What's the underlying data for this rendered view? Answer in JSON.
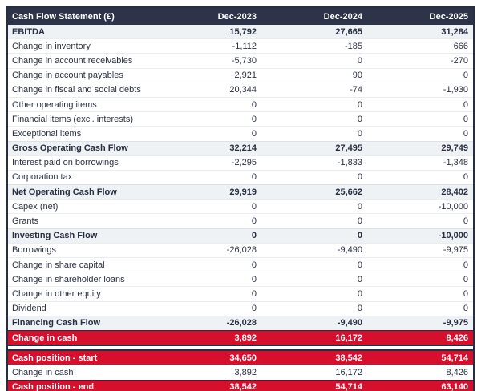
{
  "colors": {
    "header_bg": "#2d3348",
    "subtotal_bg": "#eef2f5",
    "highlight_bg": "#d60f2c",
    "border_dark": "#272e41",
    "text_light": "#ffffff",
    "text_dark": "#2b3140"
  },
  "table": {
    "title": "Cash Flow Statement (£)",
    "columns": [
      "Dec-2023",
      "Dec-2024",
      "Dec-2025"
    ],
    "rows": [
      {
        "label": "EBITDA",
        "values": [
          "15,792",
          "27,665",
          "31,284"
        ],
        "style": "subtotal"
      },
      {
        "label": "Change in inventory",
        "values": [
          "-1,112",
          "-185",
          "666"
        ],
        "style": "normal"
      },
      {
        "label": "Change in account receivables",
        "values": [
          "-5,730",
          "0",
          "-270"
        ],
        "style": "normal"
      },
      {
        "label": "Change in account payables",
        "values": [
          "2,921",
          "90",
          "0"
        ],
        "style": "normal"
      },
      {
        "label": "Change in fiscal and social debts",
        "values": [
          "20,344",
          "-74",
          "-1,930"
        ],
        "style": "normal"
      },
      {
        "label": "Other operating items",
        "values": [
          "0",
          "0",
          "0"
        ],
        "style": "normal"
      },
      {
        "label": "Financial items (excl. interests)",
        "values": [
          "0",
          "0",
          "0"
        ],
        "style": "normal"
      },
      {
        "label": "Exceptional items",
        "values": [
          "0",
          "0",
          "0"
        ],
        "style": "normal"
      },
      {
        "label": "Gross Operating Cash Flow",
        "values": [
          "32,214",
          "27,495",
          "29,749"
        ],
        "style": "subtotal"
      },
      {
        "label": "Interest paid on borrowings",
        "values": [
          "-2,295",
          "-1,833",
          "-1,348"
        ],
        "style": "normal"
      },
      {
        "label": "Corporation tax",
        "values": [
          "0",
          "0",
          "0"
        ],
        "style": "normal"
      },
      {
        "label": "Net Operating Cash Flow",
        "values": [
          "29,919",
          "25,662",
          "28,402"
        ],
        "style": "subtotal"
      },
      {
        "label": "Capex (net)",
        "values": [
          "0",
          "0",
          "-10,000"
        ],
        "style": "normal"
      },
      {
        "label": "Grants",
        "values": [
          "0",
          "0",
          "0"
        ],
        "style": "normal"
      },
      {
        "label": "Investing Cash Flow",
        "values": [
          "0",
          "0",
          "-10,000"
        ],
        "style": "subtotal"
      },
      {
        "label": "Borrowings",
        "values": [
          "-26,028",
          "-9,490",
          "-9,975"
        ],
        "style": "normal"
      },
      {
        "label": "Change in share capital",
        "values": [
          "0",
          "0",
          "0"
        ],
        "style": "normal"
      },
      {
        "label": "Change in shareholder loans",
        "values": [
          "0",
          "0",
          "0"
        ],
        "style": "normal"
      },
      {
        "label": "Change in other equity",
        "values": [
          "0",
          "0",
          "0"
        ],
        "style": "normal"
      },
      {
        "label": "Dividend",
        "values": [
          "0",
          "0",
          "0"
        ],
        "style": "normal"
      },
      {
        "label": "Financing Cash Flow",
        "values": [
          "-26,028",
          "-9,490",
          "-9,975"
        ],
        "style": "subtotal"
      },
      {
        "label": "Change in cash",
        "values": [
          "3,892",
          "16,172",
          "8,426"
        ],
        "style": "highlight"
      },
      {
        "style": "spacer"
      },
      {
        "label": "Cash position - start",
        "values": [
          "34,650",
          "38,542",
          "54,714"
        ],
        "style": "highlight"
      },
      {
        "label": "Change in cash",
        "values": [
          "3,892",
          "16,172",
          "8,426"
        ],
        "style": "normal"
      },
      {
        "label": "Cash position - end",
        "values": [
          "38,542",
          "54,714",
          "63,140"
        ],
        "style": "highlight"
      }
    ]
  },
  "chart_data": {
    "type": "table",
    "title": "Cash Flow Statement (£)",
    "columns": [
      "Dec-2023",
      "Dec-2024",
      "Dec-2025"
    ],
    "rows": [
      {
        "label": "EBITDA",
        "values": [
          15792,
          27665,
          31284
        ],
        "row_type": "subtotal"
      },
      {
        "label": "Change in inventory",
        "values": [
          -1112,
          -185,
          666
        ],
        "row_type": "line-item"
      },
      {
        "label": "Change in account receivables",
        "values": [
          -5730,
          0,
          -270
        ],
        "row_type": "line-item"
      },
      {
        "label": "Change in account payables",
        "values": [
          2921,
          90,
          0
        ],
        "row_type": "line-item"
      },
      {
        "label": "Change in fiscal and social debts",
        "values": [
          20344,
          -74,
          -1930
        ],
        "row_type": "line-item"
      },
      {
        "label": "Other operating items",
        "values": [
          0,
          0,
          0
        ],
        "row_type": "line-item"
      },
      {
        "label": "Financial items (excl. interests)",
        "values": [
          0,
          0,
          0
        ],
        "row_type": "line-item"
      },
      {
        "label": "Exceptional items",
        "values": [
          0,
          0,
          0
        ],
        "row_type": "line-item"
      },
      {
        "label": "Gross Operating Cash Flow",
        "values": [
          32214,
          27495,
          29749
        ],
        "row_type": "subtotal"
      },
      {
        "label": "Interest paid on borrowings",
        "values": [
          -2295,
          -1833,
          -1348
        ],
        "row_type": "line-item"
      },
      {
        "label": "Corporation tax",
        "values": [
          0,
          0,
          0
        ],
        "row_type": "line-item"
      },
      {
        "label": "Net Operating Cash Flow",
        "values": [
          29919,
          25662,
          28402
        ],
        "row_type": "subtotal"
      },
      {
        "label": "Capex (net)",
        "values": [
          0,
          0,
          -10000
        ],
        "row_type": "line-item"
      },
      {
        "label": "Grants",
        "values": [
          0,
          0,
          0
        ],
        "row_type": "line-item"
      },
      {
        "label": "Investing Cash Flow",
        "values": [
          0,
          0,
          -10000
        ],
        "row_type": "subtotal"
      },
      {
        "label": "Borrowings",
        "values": [
          -26028,
          -9490,
          -9975
        ],
        "row_type": "line-item"
      },
      {
        "label": "Change in share capital",
        "values": [
          0,
          0,
          0
        ],
        "row_type": "line-item"
      },
      {
        "label": "Change in shareholder loans",
        "values": [
          0,
          0,
          0
        ],
        "row_type": "line-item"
      },
      {
        "label": "Change in other equity",
        "values": [
          0,
          0,
          0
        ],
        "row_type": "line-item"
      },
      {
        "label": "Dividend",
        "values": [
          0,
          0,
          0
        ],
        "row_type": "line-item"
      },
      {
        "label": "Financing Cash Flow",
        "values": [
          -26028,
          -9490,
          -9975
        ],
        "row_type": "subtotal"
      },
      {
        "label": "Change in cash",
        "values": [
          3892,
          16172,
          8426
        ],
        "row_type": "total-highlight"
      },
      {
        "label": "Cash position - start",
        "values": [
          34650,
          38542,
          54714
        ],
        "row_type": "total-highlight"
      },
      {
        "label": "Change in cash",
        "values": [
          3892,
          16172,
          8426
        ],
        "row_type": "line-item"
      },
      {
        "label": "Cash position - end",
        "values": [
          38542,
          54714,
          63140
        ],
        "row_type": "total-highlight"
      }
    ]
  }
}
